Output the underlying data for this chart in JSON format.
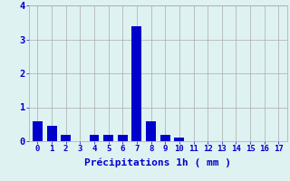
{
  "categories": [
    0,
    1,
    2,
    3,
    4,
    5,
    6,
    7,
    8,
    9,
    10,
    11,
    12,
    13,
    14,
    15,
    16,
    17
  ],
  "values": [
    0.6,
    0.45,
    0.2,
    0.0,
    0.2,
    0.2,
    0.2,
    3.4,
    0.6,
    0.2,
    0.1,
    0.0,
    0.0,
    0.0,
    0.0,
    0.0,
    0.0,
    0.0
  ],
  "bar_color": "#0000cc",
  "background_color": "#dff2f2",
  "grid_color": "#aaaaaa",
  "xlabel": "Précipitations 1h ( mm )",
  "xlabel_color": "#0000cc",
  "tick_color": "#0000cc",
  "ylim": [
    0,
    4
  ],
  "yticks": [
    0,
    1,
    2,
    3,
    4
  ],
  "bar_width": 0.7
}
